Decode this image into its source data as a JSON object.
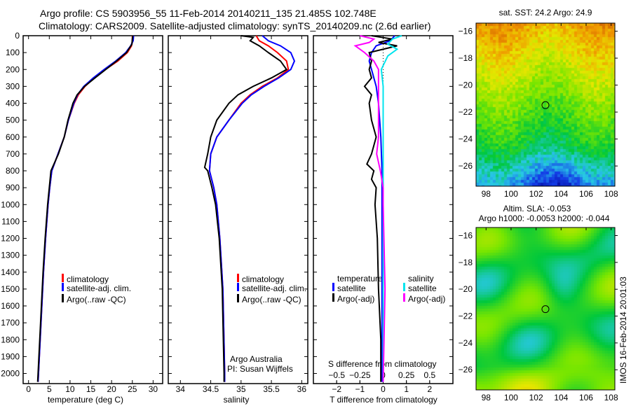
{
  "title_line1": "Argo profile: CS 5903956_55 11-Feb-2014 20140211_135 21.485S 102.748E",
  "title_line2": "Climatology: CARS2009. Satellite-adjusted climatology: synTS_20140209.nc (2.6d earlier)",
  "colors": {
    "climatology": "#ff0000",
    "satellite": "#0000ff",
    "argo": "#000000",
    "sal_satellite": "#00e5ee",
    "sal_argo": "#ff00ff"
  },
  "chart_data": [
    {
      "type": "line",
      "title": "temperature",
      "xlabel": "temperature (deg C)",
      "ylabel": "depth",
      "xlim": [
        -1.3,
        32.3
      ],
      "ylim": [
        2060,
        0
      ],
      "xticks": [
        0,
        5,
        10,
        15,
        20,
        25,
        30
      ],
      "yticks": [
        0,
        100,
        200,
        300,
        400,
        500,
        600,
        700,
        800,
        900,
        1000,
        1100,
        1200,
        1300,
        1400,
        1500,
        1600,
        1700,
        1800,
        1900,
        2000
      ],
      "legend": [
        "climatology",
        "satellite-adj. clim.",
        "Argo(..raw -QC)"
      ],
      "series": [
        {
          "name": "climatology",
          "depth": [
            0,
            30,
            60,
            100,
            150,
            200,
            250,
            300,
            350,
            400,
            500,
            600,
            700,
            800,
            900,
            1000,
            1200,
            1400,
            1600,
            1800,
            2000,
            2050
          ],
          "values": [
            25,
            25,
            24.8,
            23.8,
            21.5,
            18.5,
            15.8,
            13.6,
            12,
            11,
            9.6,
            8.6,
            7.1,
            5.6,
            5.1,
            4.7,
            4.1,
            3.6,
            3.2,
            2.8,
            2.4,
            2.3
          ]
        },
        {
          "name": "satellite-adj. clim.",
          "depth": [
            0,
            30,
            60,
            100,
            150,
            200,
            250,
            300,
            350,
            400,
            500,
            600,
            700,
            800,
            900,
            1000,
            1200,
            1400,
            1600,
            1800,
            2000,
            2050
          ],
          "values": [
            25.3,
            25.2,
            24.6,
            23.4,
            21,
            18.2,
            15.6,
            13.3,
            11.8,
            10.9,
            9.6,
            8.6,
            7.1,
            5.6,
            5.1,
            4.7,
            4.1,
            3.6,
            3.2,
            2.8,
            2.4,
            2.3
          ]
        },
        {
          "name": "Argo(..raw -QC)",
          "depth": [
            0,
            20,
            50,
            100,
            150,
            200,
            250,
            300,
            350,
            400,
            500,
            600,
            700,
            800,
            900,
            1000,
            1200,
            1400,
            1600,
            1800,
            2000,
            2050
          ],
          "values": [
            25.1,
            25,
            24.9,
            23.6,
            21.2,
            18.6,
            16,
            13.5,
            11.7,
            10.7,
            9.5,
            8.6,
            7.2,
            5.4,
            5.0,
            4.6,
            4.0,
            3.5,
            3.1,
            2.7,
            2.3,
            2.2
          ]
        }
      ]
    },
    {
      "type": "line",
      "title": "salinity",
      "xlabel": "salinity",
      "xlim": [
        33.8,
        36.1
      ],
      "ylim": [
        2060,
        0
      ],
      "xticks": [
        34,
        34.5,
        35,
        35.5,
        36
      ],
      "legend": [
        "climatology",
        "satellite-adj. clim.",
        "Argo(..raw -QC)"
      ],
      "annotation": [
        "Argo Australia",
        "PI: Susan Wijffels"
      ],
      "series": [
        {
          "name": "climatology",
          "depth": [
            0,
            30,
            60,
            100,
            150,
            200,
            250,
            300,
            350,
            400,
            500,
            600,
            700,
            800,
            900,
            1000,
            1200,
            1500,
            2000,
            2050
          ],
          "values": [
            35.25,
            35.3,
            35.45,
            35.6,
            35.75,
            35.78,
            35.6,
            35.35,
            35.15,
            35.0,
            34.8,
            34.6,
            34.5,
            34.48,
            34.55,
            34.6,
            34.65,
            34.7,
            34.73,
            34.73
          ]
        },
        {
          "name": "satellite-adj. clim.",
          "depth": [
            0,
            30,
            60,
            100,
            150,
            200,
            250,
            300,
            350,
            400,
            500,
            600,
            700,
            800,
            900,
            1000,
            1200,
            1500,
            2000,
            2050
          ],
          "values": [
            35.35,
            35.45,
            35.65,
            35.82,
            35.88,
            35.82,
            35.62,
            35.38,
            35.17,
            35.02,
            34.8,
            34.6,
            34.5,
            34.48,
            34.55,
            34.6,
            34.65,
            34.7,
            34.73,
            34.73
          ]
        },
        {
          "name": "Argo(..raw -QC)",
          "depth": [
            0,
            10,
            30,
            60,
            100,
            150,
            200,
            250,
            300,
            350,
            400,
            500,
            600,
            700,
            780,
            800,
            900,
            1000,
            1200,
            1500,
            2000,
            2050
          ],
          "values": [
            35.0,
            35.2,
            35.15,
            35.3,
            35.45,
            35.65,
            35.75,
            35.5,
            35.2,
            34.95,
            34.8,
            34.6,
            34.5,
            34.45,
            34.4,
            34.45,
            34.52,
            34.58,
            34.64,
            34.69,
            34.72,
            34.72
          ]
        }
      ]
    },
    {
      "type": "line",
      "title": "differences",
      "xlabel": "T difference from climatology",
      "xlabel2": "S difference from climatology",
      "xlim": [
        -3,
        3
      ],
      "xlim2": [
        -0.75,
        0.75
      ],
      "ylim": [
        2060,
        0
      ],
      "xticks": [
        -2,
        -1,
        0,
        1,
        2
      ],
      "xticks2": [
        -0.5,
        -0.25,
        0,
        0.25,
        0.5
      ],
      "legend_t_title": "temperature",
      "legend_s_title": "salinity",
      "legend_t": [
        "satellite",
        "Argo(-adj)"
      ],
      "legend_s": [
        "satellite",
        "Argo(-adj)"
      ],
      "series": [
        {
          "name": "T satellite",
          "depth": [
            0,
            30,
            60,
            100,
            150,
            200,
            300,
            400,
            600,
            800,
            1000,
            1500,
            2050
          ],
          "values": [
            0.5,
            0.3,
            -0.3,
            -0.5,
            -0.6,
            -0.5,
            -0.3,
            -0.2,
            -0.1,
            -0.05,
            -0.05,
            -0.05,
            -0.05
          ]
        },
        {
          "name": "T Argo(-adj)",
          "depth": [
            0,
            20,
            40,
            60,
            100,
            150,
            200,
            250,
            300,
            350,
            400,
            500,
            600,
            700,
            760,
            800,
            850,
            900,
            1000,
            1200,
            1500,
            1800,
            2050
          ],
          "values": [
            -0.5,
            0.4,
            -0.2,
            0.6,
            -0.6,
            -0.5,
            -0.6,
            -0.5,
            -0.8,
            -0.5,
            -0.6,
            -0.5,
            -0.3,
            -0.5,
            -0.7,
            -0.4,
            -0.5,
            -0.3,
            -0.35,
            -0.25,
            -0.2,
            -0.1,
            -0.1
          ]
        },
        {
          "name": "S satellite",
          "depth": [
            0,
            20,
            50,
            80,
            120,
            200,
            300,
            400,
            600,
            800,
            1000,
            1500,
            2050
          ],
          "values": [
            0.2,
            0.1,
            0.05,
            0.15,
            0.05,
            -0.02,
            0,
            0,
            0,
            0,
            0,
            0,
            0
          ]
        },
        {
          "name": "S Argo(-adj)",
          "depth": [
            0,
            20,
            40,
            60,
            100,
            150,
            200,
            300,
            400,
            600,
            700,
            800,
            900,
            1000,
            1500,
            2050
          ],
          "values": [
            -0.25,
            -0.1,
            -0.15,
            -0.3,
            -0.2,
            -0.1,
            -0.05,
            -0.05,
            -0.05,
            -0.05,
            -0.07,
            -0.03,
            0,
            0,
            0.02,
            0
          ]
        }
      ]
    },
    {
      "type": "heatmap",
      "title": "sat. SST: 24.2 Argo: 24.9",
      "xlim": [
        97.2,
        108.3
      ],
      "ylim": [
        -27.5,
        -15.4
      ],
      "xticks": [
        98,
        100,
        102,
        104,
        106,
        108
      ],
      "yticks": [
        -16,
        -18,
        -20,
        -22,
        -24,
        -26
      ],
      "marker": [
        102.748,
        -21.485
      ]
    },
    {
      "type": "heatmap",
      "title": "Altim. SLA: -0.053",
      "subtitle": "Argo h1000: -0.0053 h2000: -0.044",
      "xlim": [
        97.2,
        108.3
      ],
      "ylim": [
        -27.5,
        -15.4
      ],
      "xticks": [
        98,
        100,
        102,
        104,
        106,
        108
      ],
      "yticks": [
        -16,
        -18,
        -20,
        -22,
        -24,
        -26
      ],
      "marker": [
        102.748,
        -21.485
      ]
    }
  ],
  "stamp": "IMOS 16-Feb-2014 20:01:03"
}
